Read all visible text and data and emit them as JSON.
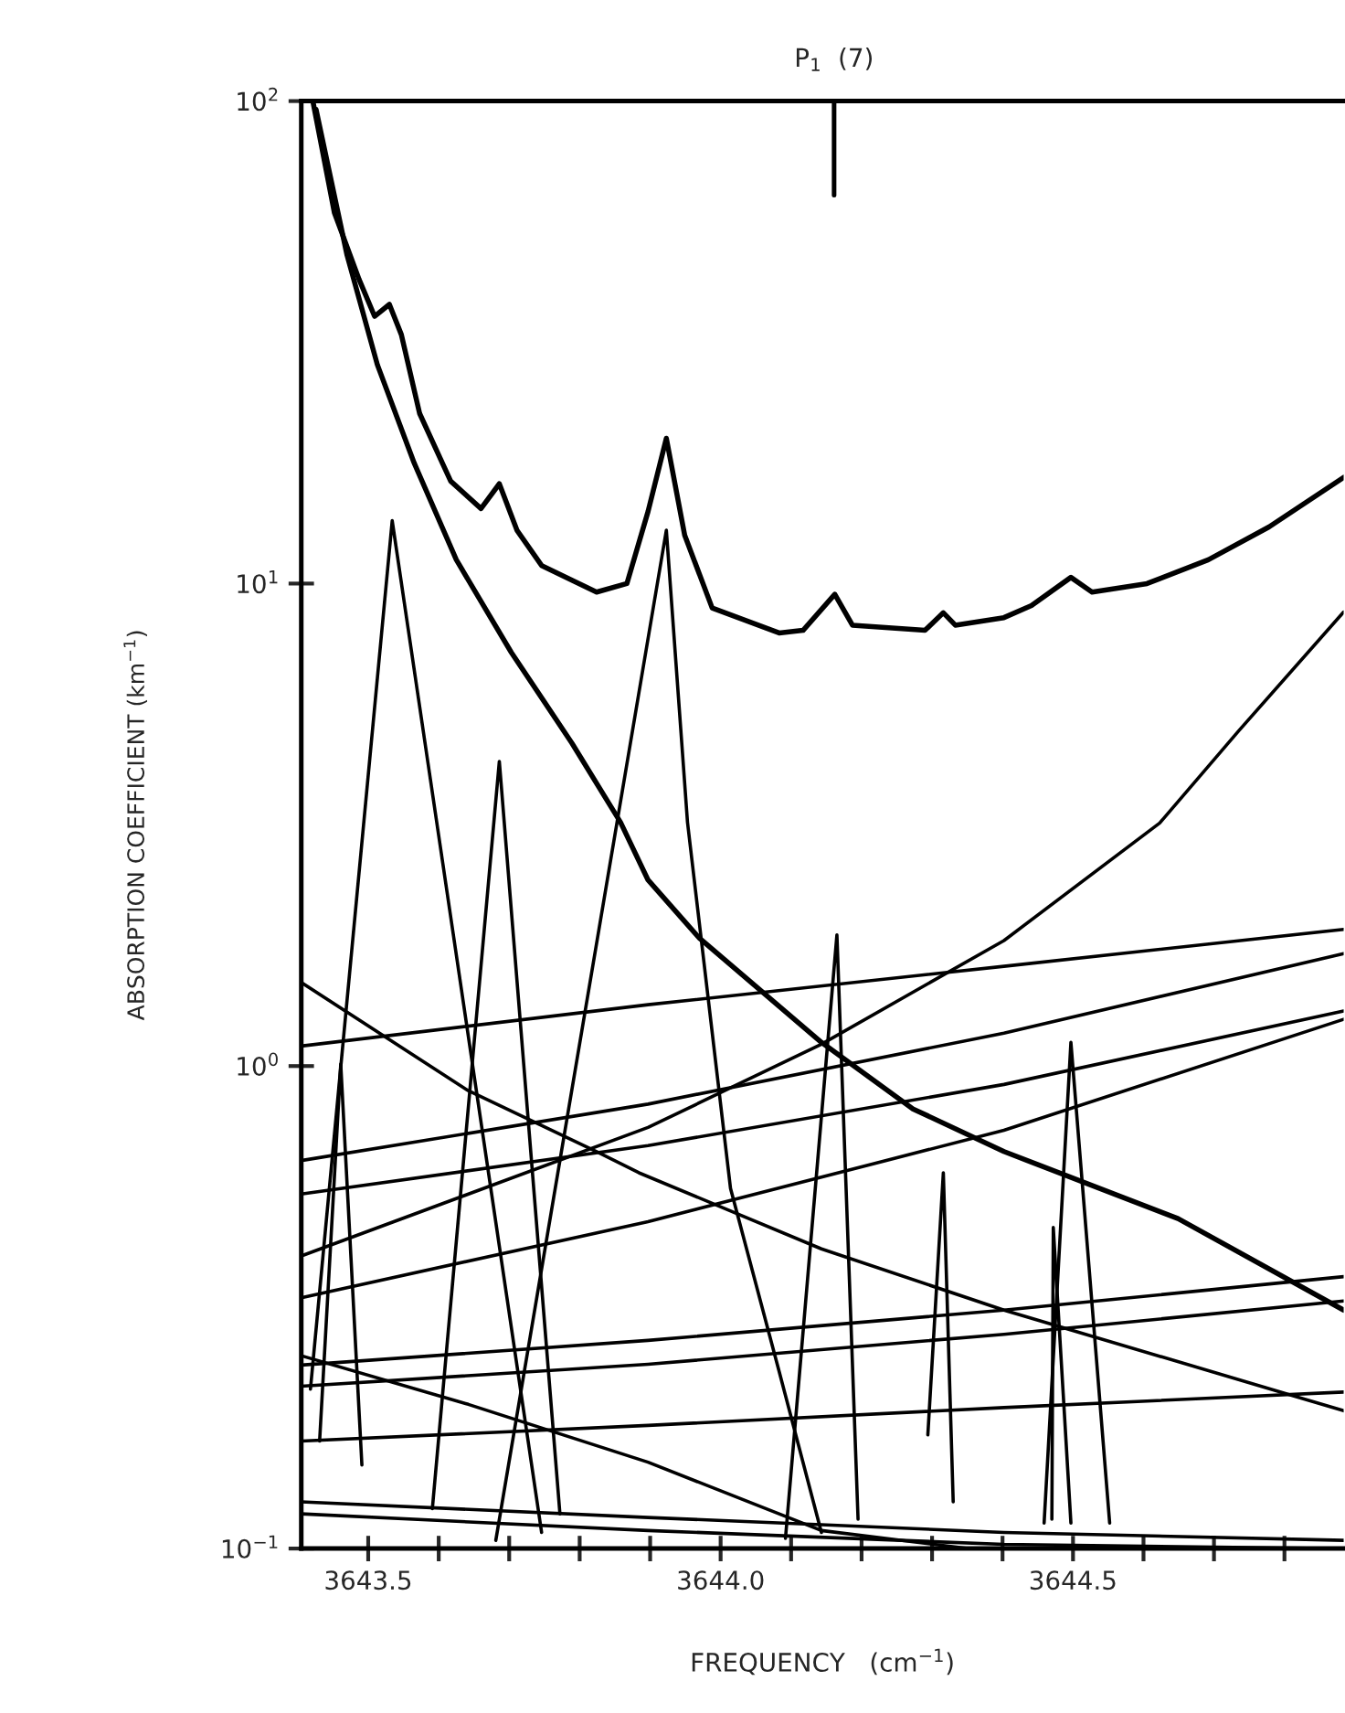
{
  "chart_data": {
    "type": "line",
    "xlabel": "FREQUENCY   (cm$^{−1}$)",
    "ylabel": "ABSORPTION COEFFICIENT (km$^{−1}$)",
    "ref_lines": [
      {
        "axis": "x",
        "value": 3644.161,
        "label": "P$_{1}$  (7)"
      }
    ],
    "log": "y",
    "grid": false,
    "legend": false,
    "marker": "none",
    "line_style": "solid",
    "xlim": [
      3643.405,
      3644.884
    ],
    "ylim": [
      0.1,
      100
    ],
    "xticks": [
      3643.5,
      {
        "value": 3643.6,
        "label": null
      },
      {
        "value": 3643.7,
        "label": null
      },
      {
        "value": 3643.8,
        "label": null
      },
      {
        "value": 3643.9,
        "label": null
      },
      {
        "value": 3644.0,
        "label": "3644.0"
      },
      {
        "value": 3644.1,
        "label": null
      },
      {
        "value": 3644.2,
        "label": null
      },
      {
        "value": 3644.3,
        "label": null
      },
      {
        "value": 3644.4,
        "label": null
      },
      3644.5,
      {
        "value": 3644.6,
        "label": null
      },
      {
        "value": 3644.7,
        "label": null
      },
      {
        "value": 3644.8,
        "label": null
      }
    ],
    "yticks": [
      {
        "value": 0.1,
        "label": "10$^{−1}$"
      },
      {
        "value": 1,
        "label": "10$^{0}$"
      },
      {
        "value": 10,
        "label": "10$^{1}$"
      },
      {
        "value": 100,
        "label": "10$^{2}$"
      }
    ],
    "series": [
      {
        "color": "#000000",
        "x": [
          3643.422,
          3643.452,
          3643.487,
          3643.509,
          3643.53,
          3643.547,
          3643.573,
          3643.617,
          3643.66,
          3643.686,
          3643.711,
          3643.746,
          3643.824,
          3643.867,
          3643.897,
          3643.923,
          3643.949,
          3643.988,
          3644.083,
          3644.117,
          3644.162,
          3644.187,
          3644.29,
          3644.316,
          3644.333,
          3644.402,
          3644.441,
          3644.497,
          3644.527,
          3644.605,
          3644.692,
          3644.778,
          3644.884
        ],
        "values": [
          99,
          58.7,
          42.7,
          35.8,
          37.9,
          32.8,
          22.5,
          16.3,
          14.3,
          16.1,
          12.9,
          10.9,
          9.6,
          10,
          14.1,
          20,
          12.6,
          8.9,
          7.9,
          8,
          9.5,
          8.2,
          8,
          8.7,
          8.2,
          8.5,
          9,
          10.3,
          9.6,
          10,
          11.2,
          13.1,
          16.6
        ]
      },
      {
        "color": "#000000",
        "x": [
          3643.426,
          3643.47,
          3643.513,
          3643.565,
          3643.625,
          3643.703,
          3643.789,
          3643.858,
          3643.897,
          3643.97,
          3644.143,
          3644.273,
          3644.402,
          3644.649,
          3644.884
        ],
        "values": [
          96,
          47.9,
          28.4,
          17.8,
          11.2,
          7.2,
          4.67,
          3.2,
          2.43,
          1.84,
          1.12,
          0.815,
          0.665,
          0.483,
          0.312
        ]
      },
      {
        "color": "#000000",
        "x": [
          3643.405,
          3643.642,
          3643.824,
          3643.884,
          3644.143,
          3644.402,
          3644.884
        ],
        "values": [
          1.49,
          0.889,
          0.665,
          0.601,
          0.418,
          0.312,
          0.193
        ]
      },
      {
        "color": "#000000",
        "x": [
          3643.405,
          3643.642,
          3643.897,
          3644.143,
          3644.351
        ],
        "values": [
          0.251,
          0.199,
          0.151,
          0.109,
          0.1
        ]
      },
      {
        "color": "#000000",
        "x": [
          3643.405,
          3643.897,
          3644.143,
          3644.402,
          3644.623,
          3644.735,
          3644.884
        ],
        "values": [
          0.404,
          0.746,
          1.11,
          1.82,
          3.19,
          4.95,
          8.73
        ]
      },
      {
        "color": "#000000",
        "x": [
          3643.405,
          3643.897,
          3644.402,
          3644.884
        ],
        "values": [
          1.1,
          1.34,
          1.61,
          1.92
        ]
      },
      {
        "color": "#000000",
        "x": [
          3643.405,
          3643.897,
          3644.402,
          3644.884
        ],
        "values": [
          0.637,
          0.834,
          1.17,
          1.71
        ]
      },
      {
        "color": "#000000",
        "x": [
          3643.405,
          3643.897,
          3644.402,
          3644.884
        ],
        "values": [
          0.543,
          0.684,
          0.916,
          1.3
        ]
      },
      {
        "color": "#000000",
        "x": [
          3643.405,
          3643.897,
          3644.402,
          3644.884
        ],
        "values": [
          0.331,
          0.476,
          0.736,
          1.25
        ]
      },
      {
        "color": "#000000",
        "x": [
          3643.405,
          3643.897,
          3644.402,
          3644.884
        ],
        "values": [
          0.24,
          0.27,
          0.312,
          0.366
        ]
      },
      {
        "color": "#000000",
        "x": [
          3643.405,
          3643.897,
          3644.402,
          3644.884
        ],
        "values": [
          0.217,
          0.241,
          0.278,
          0.326
        ]
      },
      {
        "color": "#000000",
        "x": [
          3643.405,
          3643.897,
          3644.402,
          3644.884
        ],
        "values": [
          0.167,
          0.18,
          0.196,
          0.211
        ]
      },
      {
        "color": "#000000",
        "x": [
          3643.405,
          3643.897,
          3644.402,
          3644.884
        ],
        "values": [
          0.125,
          0.116,
          0.108,
          0.104
        ]
      },
      {
        "color": "#000000",
        "x": [
          3643.405,
          3643.897,
          3644.402,
          3644.86
        ],
        "values": [
          0.118,
          0.109,
          0.102,
          0.1
        ]
      },
      {
        "color": "#000000",
        "x": [
          3643.431,
          3643.461,
          3643.491
        ],
        "values": [
          0.167,
          1.01,
          0.149
        ]
      },
      {
        "color": "#000000",
        "x": [
          3643.418,
          3643.534,
          3643.746
        ],
        "values": [
          0.214,
          13.5,
          0.108
        ]
      },
      {
        "color": "#000000",
        "x": [
          3643.591,
          3643.686,
          3643.772
        ],
        "values": [
          0.121,
          4.28,
          0.118
        ]
      },
      {
        "color": "#000000",
        "x": [
          3643.681,
          3643.923,
          3643.953,
          3644.014,
          3644.083,
          3644.143
        ],
        "values": [
          0.104,
          12.9,
          3.2,
          0.558,
          0.233,
          0.108
        ]
      },
      {
        "color": "#000000",
        "x": [
          3644.092,
          3644.165,
          3644.195
        ],
        "values": [
          0.105,
          1.87,
          0.115
        ]
      },
      {
        "color": "#000000",
        "x": [
          3644.294,
          3644.316,
          3644.33
        ],
        "values": [
          0.172,
          0.601,
          0.125
        ]
      },
      {
        "color": "#000000",
        "x": [
          3644.47,
          3644.472,
          3644.497
        ],
        "values": [
          0.115,
          0.463,
          0.113
        ]
      },
      {
        "color": "#000000",
        "x": [
          3644.459,
          3644.497,
          3644.552
        ],
        "values": [
          0.113,
          1.12,
          0.113
        ]
      }
    ]
  }
}
